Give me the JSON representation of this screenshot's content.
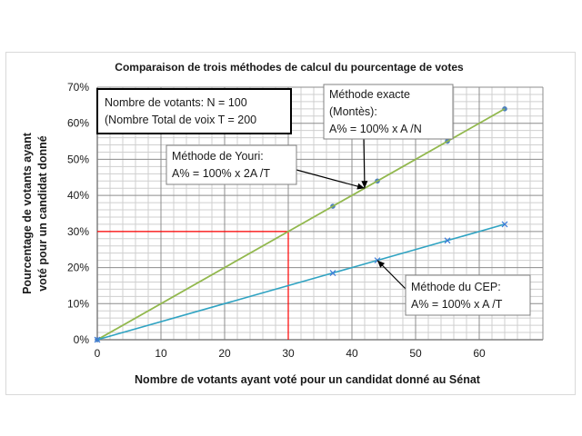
{
  "chart_data": {
    "type": "line",
    "title": "Comparaison de trois méthodes de calcul du pourcentage de votes",
    "xlabel": "Nombre de votants ayant voté pour un candidat donné au Sénat",
    "ylabel": [
      "Pourcentage de votants ayant",
      "voté pour un candidat donné"
    ],
    "xlim": [
      0,
      70
    ],
    "ylim": [
      0,
      70
    ],
    "x_ticks": [
      "0",
      "10",
      "20",
      "30",
      "40",
      "50",
      "60"
    ],
    "y_ticks": [
      "0%",
      "10%",
      "20%",
      "30%",
      "40%",
      "50%",
      "60%",
      "70%"
    ],
    "grid": true,
    "series": [
      {
        "name": "Méthode exacte (Montès)",
        "color": "#92b84e",
        "marker": "dot",
        "markerColor": "#4f81bd",
        "x": [
          0,
          37,
          44,
          55,
          64
        ],
        "values": [
          0,
          37,
          44,
          55,
          64
        ]
      },
      {
        "name": "Méthode de Youri",
        "color": "#92b84e",
        "marker": "none",
        "x": [
          0,
          64
        ],
        "values": [
          0,
          64
        ]
      },
      {
        "name": "Méthode du CEP",
        "color": "#2fa3c2",
        "marker": "x",
        "markerColor": "#3b7bd8",
        "x": [
          0,
          37,
          44,
          55,
          64
        ],
        "values": [
          0,
          18.5,
          22,
          27.5,
          32
        ]
      }
    ],
    "reference_lines": {
      "x": 30,
      "y": 30,
      "color": "#ff0000"
    },
    "info_box": [
      "Nombre de votants: N = 100",
      "(Nombre Total de voix  T = 200"
    ],
    "annotations": [
      {
        "id": "exacte",
        "lines": [
          "Méthode exacte",
          "(Montès):",
          "A%  = 100% x A /N"
        ],
        "arrow_to": {
          "x": 42,
          "y": 42
        }
      },
      {
        "id": "youri",
        "lines": [
          "Méthode de Youri:",
          "A%  = 100% x 2A /T"
        ],
        "arrow_to": {
          "x": 42,
          "y": 42
        }
      },
      {
        "id": "cep",
        "lines": [
          "Méthode du CEP:",
          "A%  = 100% x A /T"
        ],
        "arrow_to": {
          "x": 44,
          "y": 22
        }
      }
    ]
  }
}
